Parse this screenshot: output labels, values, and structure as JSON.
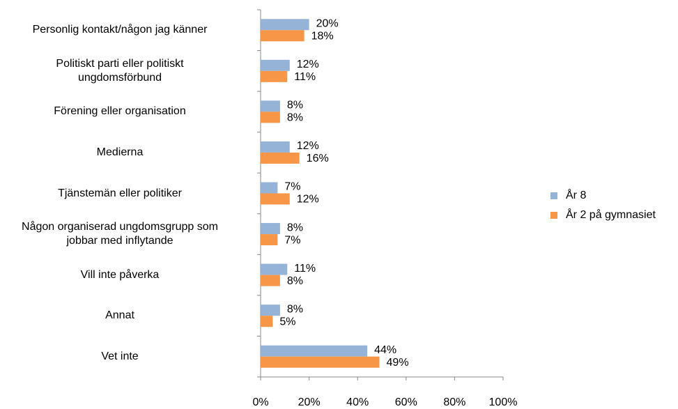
{
  "chart_data": {
    "type": "barh",
    "categories": [
      "Personlig kontakt/någon jag känner",
      "Politiskt parti eller politiskt\nungdomsförbund",
      "Förening eller organisation",
      "Medierna",
      "Tjänstemän eller politiker",
      "Någon organiserad ungdomsgrupp som\njobbar med inflytande",
      "Vill inte påverka",
      "Annat",
      "Vet inte"
    ],
    "series": [
      {
        "name": "År 8",
        "color": "#95b3d7",
        "values": [
          20,
          12,
          8,
          12,
          7,
          8,
          11,
          8,
          44
        ],
        "value_labels": [
          "20%",
          "12%",
          "8%",
          "12%",
          "7%",
          "8%",
          "11%",
          "8%",
          "44%"
        ]
      },
      {
        "name": "År 2 på gymnasiet",
        "color": "#f79646",
        "values": [
          18,
          11,
          8,
          16,
          12,
          7,
          8,
          5,
          49
        ],
        "value_labels": [
          "18%",
          "11%",
          "8%",
          "16%",
          "12%",
          "7%",
          "8%",
          "5%",
          "49%"
        ]
      }
    ],
    "xlim": [
      0,
      100
    ],
    "xticks": [
      {
        "value": 0,
        "label": "0%"
      },
      {
        "value": 20,
        "label": "20%"
      },
      {
        "value": 40,
        "label": "40%"
      },
      {
        "value": 60,
        "label": "60%"
      },
      {
        "value": 80,
        "label": "80%"
      },
      {
        "value": 100,
        "label": "100%"
      }
    ],
    "legend": "right"
  }
}
